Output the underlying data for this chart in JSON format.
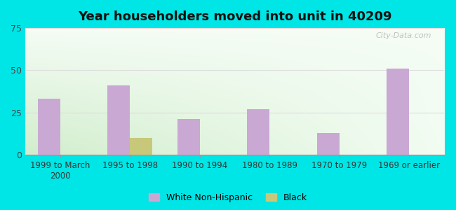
{
  "title": "Year householders moved into unit in 40209",
  "categories": [
    "1999 to March\n2000",
    "1995 to 1998",
    "1990 to 1994",
    "1980 to 1989",
    "1970 to 1979",
    "1969 or earlier"
  ],
  "white_values": [
    33,
    41,
    21,
    27,
    13,
    51
  ],
  "black_values": [
    0,
    10,
    0,
    0,
    0,
    0
  ],
  "white_color": "#c9a8d4",
  "black_color": "#c8c87a",
  "ylim": [
    0,
    75
  ],
  "yticks": [
    0,
    25,
    50,
    75
  ],
  "background_outer": "#00e5e5",
  "grid_color": "#dddddd",
  "bar_width": 0.32,
  "legend_labels": [
    "White Non-Hispanic",
    "Black"
  ],
  "watermark": "City-Data.com"
}
